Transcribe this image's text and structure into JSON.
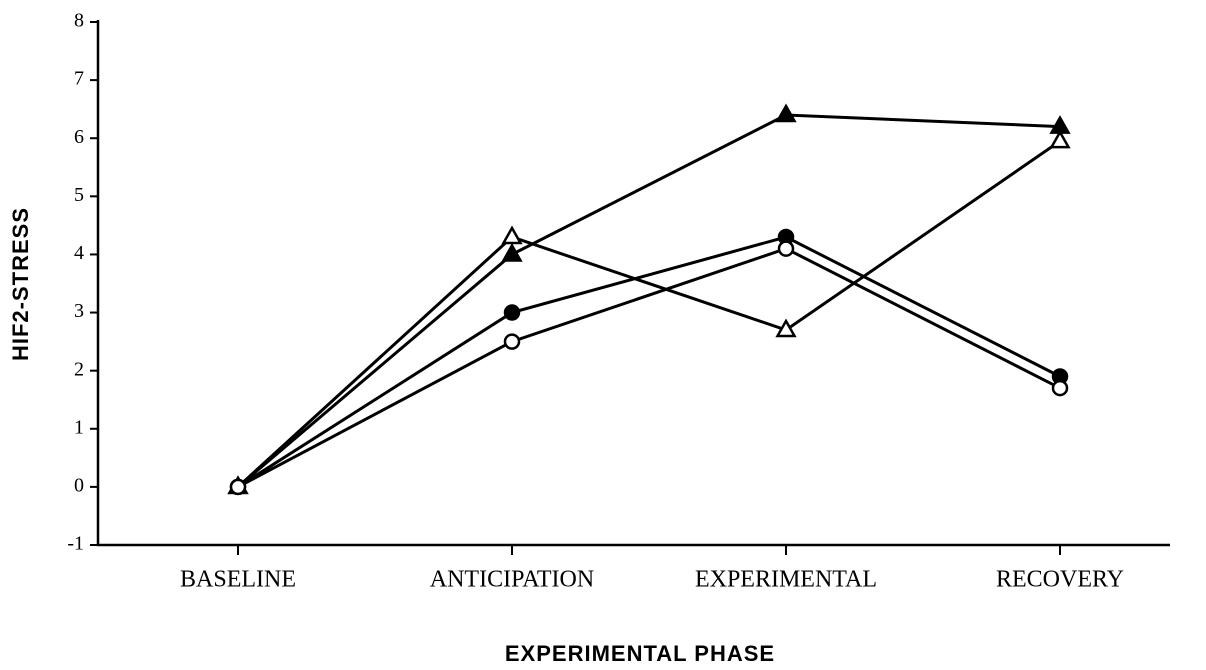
{
  "chart_data": {
    "type": "line",
    "xlabel": "EXPERIMENTAL PHASE",
    "ylabel": "HIF2-STRESS",
    "categories": [
      "BASELINE",
      "ANTICIPATION",
      "EXPERIMENTAL",
      "RECOVERY"
    ],
    "series": [
      {
        "marker": "triangle",
        "filled": true,
        "color": "#000000",
        "values": [
          0,
          4.0,
          6.4,
          6.2
        ]
      },
      {
        "marker": "triangle",
        "filled": false,
        "color": "#000000",
        "values": [
          0,
          4.3,
          2.7,
          5.95
        ]
      },
      {
        "marker": "circle",
        "filled": true,
        "color": "#000000",
        "values": [
          0,
          3.0,
          4.3,
          1.9
        ]
      },
      {
        "marker": "circle",
        "filled": false,
        "color": "#000000",
        "values": [
          0,
          2.5,
          4.1,
          1.7
        ]
      }
    ],
    "ylim": [
      -1,
      8
    ],
    "yticks": [
      -1,
      0,
      1,
      2,
      3,
      4,
      5,
      6,
      7,
      8
    ],
    "grid": false
  }
}
